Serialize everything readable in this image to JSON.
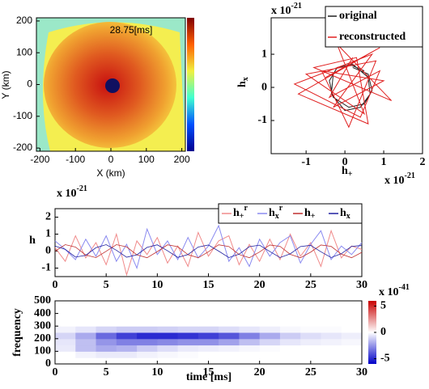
{
  "chart_data": [
    {
      "type": "heatmap-image",
      "annotation": "28.75[ms]",
      "xlabel": "X (km)",
      "ylabel": "Y (km)",
      "xlim": [
        -210,
        210
      ],
      "xticks": [
        -200,
        -100,
        0,
        100,
        200
      ],
      "ylim": [
        -210,
        210
      ],
      "yticks": [
        -200,
        -100,
        0,
        100,
        200
      ]
    },
    {
      "type": "line",
      "xlabel": "h",
      "xlabel_sub": "+",
      "ylabel": "h",
      "ylabel_sub": "x",
      "y_exponent": "x 10",
      "y_exponent_power": "-21",
      "x_exponent": "x 10",
      "x_exponent_power": "-21",
      "xlim": [
        -1.9,
        2
      ],
      "xticks": [
        -1,
        0,
        1,
        2
      ],
      "ylim": [
        -2,
        2.1
      ],
      "yticks": [
        -1,
        0,
        1
      ],
      "legend": "upper right",
      "series": [
        {
          "name": "original",
          "color": "#202020",
          "x": [
            0.2,
            0.6,
            0.7,
            0.5,
            0.1,
            -0.3,
            -0.4,
            -0.2,
            0.2,
            0.6,
            0.65,
            0.4,
            0.0,
            -0.35,
            -0.3,
            0.1,
            0.5
          ],
          "values": [
            0.6,
            0.4,
            -0.1,
            -0.5,
            -0.6,
            -0.3,
            0.2,
            0.6,
            0.7,
            0.3,
            -0.2,
            -0.6,
            -0.7,
            -0.2,
            0.4,
            0.7,
            0.5
          ]
        },
        {
          "name": "reconstructed",
          "color": "#e02020",
          "x": [
            -0.5,
            0.9,
            -1.2,
            0.6,
            0.3,
            -0.8,
            1.2,
            -0.2,
            0.5,
            -1.0,
            0.8,
            0.1,
            -0.6,
            1.0,
            -0.3,
            0.7,
            -1.3,
            0.4,
            0.9,
            -0.4,
            0.2
          ],
          "values": [
            0.3,
            1.2,
            -0.2,
            -1.1,
            0.9,
            0.6,
            -0.4,
            1.3,
            -0.8,
            0.4,
            0.8,
            -1.2,
            0.5,
            0.2,
            -0.6,
            1.0,
            0.1,
            -0.9,
            0.5,
            -0.3,
            0.9
          ]
        }
      ]
    },
    {
      "type": "line",
      "ylabel": "h",
      "exponent": "x 10",
      "exponent_power": "-21",
      "xlim": [
        0,
        30
      ],
      "xticks": [
        0,
        5,
        10,
        15,
        20,
        25,
        30
      ],
      "ylim": [
        -1.5,
        2.5
      ],
      "yticks": [
        -1,
        0,
        1,
        2
      ],
      "legend": "upper right",
      "x": [
        0,
        1,
        2,
        3,
        4,
        5,
        6,
        7,
        8,
        9,
        10,
        11,
        12,
        13,
        14,
        15,
        16,
        17,
        18,
        19,
        20,
        21,
        22,
        23,
        24,
        25,
        26,
        27,
        28,
        29,
        30
      ],
      "series": [
        {
          "name": "h",
          "sub": "+",
          "sup": "r",
          "color": "#f08a8a",
          "values": [
            0.2,
            -0.6,
            0.9,
            -0.4,
            0.5,
            -0.8,
            1.0,
            -1.4,
            0.6,
            -0.2,
            0.8,
            -0.7,
            0.3,
            -0.9,
            1.1,
            -0.3,
            0.6,
            0.9,
            -0.8,
            0.4,
            -0.6,
            0.7,
            -0.5,
            1.0,
            -0.3,
            0.5,
            -0.9,
            1.2,
            -0.4,
            0.3,
            0.1
          ]
        },
        {
          "name": "h",
          "sub": "x",
          "sup": "r",
          "color": "#8a8af0",
          "values": [
            0.6,
            0.1,
            -0.5,
            0.7,
            -0.3,
            0.9,
            -0.6,
            0.4,
            -1.0,
            1.3,
            -0.2,
            0.6,
            -0.5,
            0.8,
            -0.4,
            0.3,
            1.5,
            -0.6,
            0.2,
            -0.9,
            0.7,
            -0.3,
            0.5,
            0.9,
            -0.7,
            0.4,
            1.2,
            -0.5,
            0.3,
            -0.2,
            0.5
          ]
        },
        {
          "name": "h",
          "sub": "+",
          "color": "#c03030",
          "values": [
            0,
            0.38,
            0.24,
            -0.23,
            -0.38,
            -0.01,
            0.38,
            0.25,
            -0.22,
            -0.39,
            -0.03,
            0.37,
            0.26,
            -0.21,
            -0.39,
            -0.04,
            0.37,
            0.27,
            -0.2,
            -0.39,
            -0.05,
            0.36,
            0.28,
            -0.19,
            -0.39,
            -0.06,
            0.36,
            0.28,
            -0.18,
            -0.39,
            -0.07
          ]
        },
        {
          "name": "h",
          "sub": "x",
          "color": "#2020a0",
          "values": [
            0.3,
            0.1,
            -0.35,
            -0.25,
            0.2,
            0.38,
            0.05,
            -0.36,
            -0.22,
            0.22,
            0.37,
            0.02,
            -0.37,
            -0.2,
            0.24,
            0.36,
            0,
            -0.38,
            -0.18,
            0.26,
            0.35,
            -0.02,
            -0.38,
            -0.16,
            0.27,
            0.34,
            -0.04,
            -0.38,
            -0.15,
            0.28,
            0.33
          ]
        }
      ]
    },
    {
      "type": "heatmap",
      "xlabel": "time [ms]",
      "ylabel": "frequency",
      "cbar_exponent": "x 10",
      "cbar_exponent_power": "-41",
      "xlim": [
        0,
        30
      ],
      "xticks": [
        0,
        5,
        10,
        15,
        20,
        25,
        30
      ],
      "ylim": [
        0,
        500
      ],
      "yticks": [
        0,
        100,
        200,
        300,
        400,
        500
      ],
      "clim": [
        -6,
        6
      ],
      "cbar_ticks": [
        -5,
        0,
        5
      ],
      "x_edges": [
        0,
        2,
        4,
        6,
        8,
        10,
        12,
        14,
        16,
        18,
        20,
        22,
        24,
        26,
        28,
        30
      ],
      "y_edges": [
        0,
        50,
        100,
        150,
        200,
        250,
        300,
        350,
        400,
        450,
        500
      ],
      "z": [
        [
          0,
          0,
          0,
          0,
          0,
          0,
          0,
          0,
          0,
          0,
          0,
          0,
          0,
          0,
          0
        ],
        [
          0,
          -0.3,
          -0.5,
          -0.5,
          -0.3,
          -0.2,
          -0.1,
          0,
          0,
          0,
          0,
          0,
          0,
          0,
          0
        ],
        [
          -0.5,
          -1.5,
          -2,
          -1.8,
          -1.2,
          -0.8,
          -0.5,
          -0.4,
          -0.3,
          -0.2,
          -0.1,
          0,
          0,
          0,
          0
        ],
        [
          -0.6,
          -1.5,
          -2.5,
          -3,
          -3,
          -2.8,
          -2.6,
          -2.6,
          -2.2,
          -1.5,
          -1,
          -0.6,
          -0.4,
          -0.3,
          -0.2
        ],
        [
          -1,
          -2,
          -3.5,
          -4.5,
          -5,
          -5,
          -4.8,
          -4.5,
          -4,
          -3,
          -2,
          -1.2,
          -0.8,
          -0.6,
          -0.4
        ],
        [
          -0.3,
          -0.6,
          -1,
          -1.2,
          -1.2,
          -1.1,
          -1,
          -1,
          -0.8,
          -0.6,
          -0.4,
          -0.2,
          -0.1,
          -0.1,
          0
        ],
        [
          0,
          0,
          0,
          0,
          0,
          0,
          0,
          0,
          0,
          0,
          0,
          0,
          0,
          0,
          0
        ],
        [
          0,
          0,
          0,
          0,
          0,
          0,
          0,
          0,
          0,
          0,
          0,
          0,
          0,
          0,
          0
        ],
        [
          0,
          0,
          0,
          0,
          0,
          0,
          0,
          0,
          0,
          0,
          0,
          0,
          0,
          0,
          0
        ],
        [
          0,
          0,
          0,
          0,
          0,
          0,
          0,
          0,
          0,
          0,
          0,
          0,
          0,
          0,
          0
        ]
      ]
    }
  ]
}
